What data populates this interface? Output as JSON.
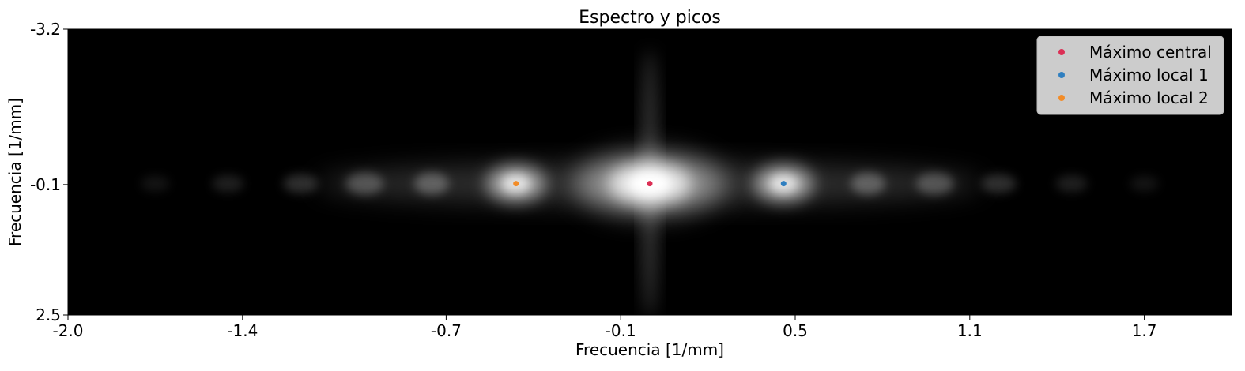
{
  "chart_data": {
    "type": "heatmap",
    "title": "Espectro y picos",
    "xlabel": "Frecuencia [1/mm]",
    "ylabel": "Frecuencia [1/mm]",
    "xlim": [
      -2.0,
      2.0
    ],
    "ylim": [
      -3.2,
      2.5
    ],
    "y_inverted": true,
    "x_ticks": [
      -2.0,
      -1.4,
      -0.7,
      -0.1,
      0.5,
      1.1,
      1.7
    ],
    "x_tick_labels": [
      "-2.0",
      "-1.4",
      "-0.7",
      "-0.1",
      "0.5",
      "1.1",
      "1.7"
    ],
    "y_ticks": [
      -3.2,
      -0.1,
      2.5
    ],
    "y_tick_labels": [
      "-3.2",
      "-0.1",
      "2.5"
    ],
    "grid": false,
    "colormap": "gray",
    "legend_position": "top-right",
    "series": [
      {
        "name": "Máximo central",
        "color": "#dc2f55",
        "x": [
          0.0
        ],
        "y": [
          -0.12
        ]
      },
      {
        "name": "Máximo local 1",
        "color": "#2f7fc0",
        "x": [
          0.46
        ],
        "y": [
          -0.12
        ]
      },
      {
        "name": "Máximo local 2",
        "color": "#f28c28",
        "x": [
          -0.46
        ],
        "y": [
          -0.12
        ]
      }
    ]
  }
}
